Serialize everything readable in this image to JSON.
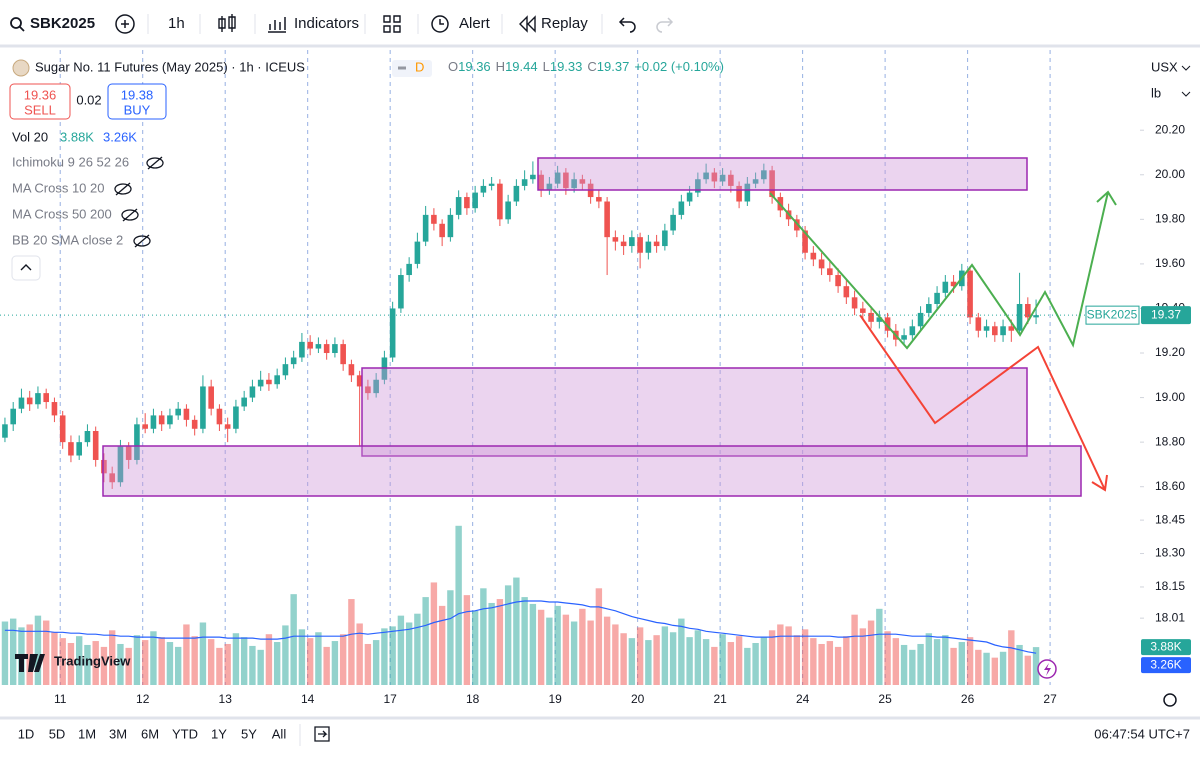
{
  "toolbar": {
    "symbol": "SBK2025",
    "interval": "1h",
    "indicators": "Indicators",
    "alert": "Alert",
    "replay": "Replay"
  },
  "legend": {
    "title": "Sugar No. 11 Futures (May 2025) · 1h · ICEUS",
    "badge": "D",
    "ohlc_keys": [
      "O",
      "H",
      "L",
      "C"
    ],
    "ohlc_values": [
      "19.36",
      "19.44",
      "19.33",
      "19.37"
    ],
    "change": "+0.02 (+0.10%)"
  },
  "trade": {
    "sell_price": "19.36",
    "sell": "SELL",
    "spread": "0.02",
    "buy_price": "19.38",
    "buy": "BUY"
  },
  "indicators": {
    "volume": "Vol 20",
    "volume_values": [
      "3.88K",
      "3.26K"
    ],
    "hidden": [
      "Ichimoku 9 26 52 26",
      "MA Cross 10 20",
      "MA Cross 50 200",
      "BB 20 SMA close 2"
    ]
  },
  "axis_menu": [
    "USX",
    "lb"
  ],
  "logo": "TradingView",
  "ranges": [
    "1D",
    "5D",
    "1M",
    "3M",
    "6M",
    "YTD",
    "1Y",
    "5Y",
    "All"
  ],
  "clock": "06:47:54 UTC+7",
  "chart_data": {
    "type": "candlestick",
    "up_color": "#26a69a",
    "down_color": "#ef5350",
    "grid": true,
    "xlim": [
      -0.6,
      137.6
    ],
    "xticks": [
      {
        "value": 6.7,
        "label": "11"
      },
      {
        "value": 16.7,
        "label": "12"
      },
      {
        "value": 26.7,
        "label": "13"
      },
      {
        "value": 36.7,
        "label": "14"
      },
      {
        "value": 46.7,
        "label": "17"
      },
      {
        "value": 56.7,
        "label": "18"
      },
      {
        "value": 66.7,
        "label": "19"
      },
      {
        "value": 76.7,
        "label": "20"
      },
      {
        "value": 86.7,
        "label": "21"
      },
      {
        "value": 96.7,
        "label": "24"
      },
      {
        "value": 106.7,
        "label": "25"
      },
      {
        "value": 116.7,
        "label": "26"
      },
      {
        "value": 126.7,
        "label": "27"
      }
    ],
    "ylim": [
      17.71,
      20.56
    ],
    "yticks": [
      {
        "value": 20.2,
        "label": "20.20"
      },
      {
        "value": 20,
        "label": "20.00"
      },
      {
        "value": 19.8,
        "label": "19.80"
      },
      {
        "value": 19.6,
        "label": "19.60"
      },
      {
        "value": 19.4,
        "label": "19.40"
      },
      {
        "value": 19.2,
        "label": "19.20"
      },
      {
        "value": 19,
        "label": "19.00"
      },
      {
        "value": 18.8,
        "label": "18.80"
      },
      {
        "value": 18.6,
        "label": "18.60"
      },
      18.45,
      {
        "value": 18.3,
        "label": "18.30"
      },
      18.15,
      18.01
    ],
    "vlim": [
      0,
      17.2
    ],
    "last_price": {
      "name": "SBK2025",
      "value": 19.37
    },
    "open": [
      18.82,
      18.88,
      18.95,
      19.0,
      18.97,
      19.02,
      18.98,
      18.92,
      18.8,
      18.74,
      18.8,
      18.85,
      18.72,
      18.66,
      18.62,
      18.78,
      18.72,
      18.88,
      18.86,
      18.92,
      18.88,
      18.92,
      18.95,
      18.9,
      18.86,
      19.05,
      18.95,
      18.88,
      18.86,
      18.96,
      19.0,
      19.05,
      19.08,
      19.06,
      19.1,
      19.15,
      19.18,
      19.25,
      19.22,
      19.24,
      19.2,
      19.24,
      19.15,
      19.1,
      19.05,
      19.02,
      19.08,
      19.18,
      19.4,
      19.55,
      19.6,
      19.7,
      19.82,
      19.78,
      19.72,
      19.82,
      19.9,
      19.85,
      19.92,
      19.95,
      19.96,
      19.8,
      19.88,
      19.95,
      19.98,
      20.0,
      19.93,
      19.96,
      20.01,
      19.94,
      19.98,
      19.96,
      19.9,
      19.88,
      19.72,
      19.7,
      19.68,
      19.72,
      19.65,
      19.7,
      19.68,
      19.75,
      19.82,
      19.88,
      19.92,
      19.98,
      20.01,
      19.97,
      20.0,
      19.95,
      19.88,
      19.96,
      19.98,
      20.02,
      19.9,
      19.84,
      19.8,
      19.75,
      19.65,
      19.62,
      19.58,
      19.55,
      19.5,
      19.45,
      19.4,
      19.38,
      19.34,
      19.36,
      19.3,
      19.26,
      19.28,
      19.32,
      19.38,
      19.42,
      19.47,
      19.52,
      19.5,
      19.57,
      19.36,
      19.3,
      19.32,
      19.28,
      19.32,
      19.3,
      19.42,
      19.36
    ],
    "high": [
      18.91,
      18.98,
      19.04,
      19.03,
      19.05,
      19.04,
      19.0,
      18.94,
      18.83,
      18.83,
      18.88,
      18.87,
      18.75,
      18.69,
      18.81,
      18.8,
      18.91,
      18.93,
      18.95,
      18.94,
      18.95,
      18.98,
      18.97,
      18.92,
      19.1,
      19.08,
      18.97,
      18.91,
      18.99,
      19.03,
      19.08,
      19.12,
      19.11,
      19.13,
      19.18,
      19.21,
      19.29,
      19.28,
      19.27,
      19.26,
      19.27,
      19.26,
      19.17,
      19.12,
      19.08,
      19.11,
      19.21,
      19.43,
      19.58,
      19.63,
      19.74,
      19.86,
      19.85,
      19.8,
      19.85,
      19.93,
      19.92,
      19.95,
      19.98,
      19.99,
      19.98,
      19.91,
      19.98,
      20.02,
      20.06,
      20.02,
      19.99,
      20.04,
      20.03,
      20.01,
      20.0,
      19.98,
      19.93,
      19.9,
      19.75,
      19.73,
      19.75,
      19.74,
      19.73,
      19.73,
      19.78,
      19.85,
      19.91,
      19.95,
      20.01,
      20.05,
      20.03,
      20.03,
      20.02,
      19.97,
      19.99,
      20.01,
      20.05,
      20.04,
      19.92,
      19.87,
      19.82,
      19.77,
      19.68,
      19.65,
      19.61,
      19.58,
      19.53,
      19.48,
      19.43,
      19.41,
      19.39,
      19.38,
      19.33,
      19.31,
      19.35,
      19.41,
      19.45,
      19.5,
      19.55,
      19.55,
      19.6,
      19.59,
      19.38,
      19.35,
      19.34,
      19.35,
      19.35,
      19.56,
      19.45,
      19.44
    ],
    "low": [
      18.8,
      18.85,
      18.93,
      18.94,
      18.95,
      18.95,
      18.89,
      18.77,
      18.71,
      18.72,
      18.78,
      18.69,
      18.62,
      18.59,
      18.6,
      18.68,
      18.7,
      18.84,
      18.84,
      18.85,
      18.86,
      18.9,
      18.87,
      18.83,
      18.84,
      18.92,
      18.85,
      18.8,
      18.84,
      18.94,
      18.98,
      19.03,
      19.03,
      19.04,
      19.08,
      19.13,
      19.16,
      19.19,
      19.2,
      19.17,
      19.18,
      19.12,
      19.07,
      18.78,
      18.99,
      19.0,
      19.06,
      19.16,
      19.38,
      19.52,
      19.58,
      19.68,
      19.75,
      19.68,
      19.7,
      19.8,
      19.82,
      19.83,
      19.9,
      19.93,
      19.77,
      19.78,
      19.86,
      19.93,
      19.96,
      19.9,
      19.91,
      19.94,
      19.91,
      19.92,
      19.93,
      19.87,
      19.85,
      19.55,
      19.66,
      19.64,
      19.65,
      19.58,
      19.62,
      19.65,
      19.66,
      19.73,
      19.8,
      19.86,
      19.9,
      19.96,
      19.94,
      19.95,
      19.92,
      19.85,
      19.86,
      19.94,
      19.96,
      19.87,
      19.81,
      19.77,
      19.72,
      19.62,
      19.59,
      19.55,
      19.52,
      19.47,
      19.42,
      19.37,
      19.35,
      19.31,
      19.31,
      19.27,
      19.23,
      19.24,
      19.26,
      19.3,
      19.36,
      19.4,
      19.45,
      19.47,
      19.48,
      19.33,
      19.27,
      19.27,
      19.25,
      19.25,
      19.25,
      19.28,
      19.33,
      19.33
    ],
    "close": [
      18.88,
      18.95,
      19.0,
      18.97,
      19.02,
      18.98,
      18.92,
      18.8,
      18.74,
      18.8,
      18.85,
      18.72,
      18.66,
      18.62,
      18.78,
      18.72,
      18.88,
      18.86,
      18.92,
      18.88,
      18.92,
      18.95,
      18.9,
      18.86,
      19.05,
      18.95,
      18.88,
      18.86,
      18.96,
      19.0,
      19.05,
      19.08,
      19.06,
      19.1,
      19.15,
      19.18,
      19.25,
      19.22,
      19.24,
      19.2,
      19.24,
      19.15,
      19.1,
      19.05,
      19.02,
      19.08,
      19.18,
      19.4,
      19.55,
      19.6,
      19.7,
      19.82,
      19.78,
      19.72,
      19.82,
      19.9,
      19.85,
      19.92,
      19.95,
      19.96,
      19.8,
      19.88,
      19.95,
      19.98,
      20.0,
      19.93,
      19.96,
      20.01,
      19.94,
      19.98,
      19.96,
      19.9,
      19.88,
      19.72,
      19.7,
      19.68,
      19.72,
      19.65,
      19.7,
      19.68,
      19.75,
      19.82,
      19.88,
      19.92,
      19.98,
      20.01,
      19.97,
      20.0,
      19.95,
      19.88,
      19.96,
      19.98,
      20.02,
      19.9,
      19.84,
      19.8,
      19.75,
      19.65,
      19.62,
      19.58,
      19.55,
      19.5,
      19.45,
      19.4,
      19.38,
      19.34,
      19.36,
      19.3,
      19.26,
      19.28,
      19.32,
      19.38,
      19.42,
      19.47,
      19.52,
      19.5,
      19.57,
      19.36,
      19.3,
      19.32,
      19.28,
      19.32,
      19.3,
      19.42,
      19.36,
      19.37
    ],
    "volume": [
      6.5,
      6.8,
      5.9,
      6.2,
      7.1,
      6.6,
      5.4,
      4.8,
      4.3,
      5.0,
      4.1,
      4.5,
      3.9,
      5.6,
      4.2,
      3.8,
      5.1,
      4.6,
      5.5,
      4.9,
      4.4,
      3.9,
      6.2,
      5.0,
      6.4,
      4.7,
      3.8,
      4.2,
      5.3,
      4.9,
      4.0,
      3.6,
      5.2,
      4.4,
      6.1,
      9.3,
      5.7,
      4.8,
      5.4,
      3.9,
      4.5,
      5.2,
      8.8,
      6.3,
      4.2,
      4.6,
      5.8,
      6.0,
      7.1,
      6.4,
      7.3,
      9.0,
      10.5,
      8.1,
      9.7,
      16.3,
      9.2,
      7.6,
      9.9,
      8.4,
      8.8,
      10.2,
      11.0,
      9.0,
      8.3,
      7.7,
      6.9,
      8.1,
      7.2,
      6.5,
      7.8,
      6.6,
      9.9,
      7.0,
      6.2,
      5.3,
      4.8,
      5.9,
      4.6,
      5.1,
      6.0,
      5.4,
      6.8,
      4.9,
      5.6,
      4.7,
      3.9,
      5.2,
      4.4,
      5.0,
      3.8,
      4.3,
      4.9,
      5.6,
      6.2,
      6.0,
      5.1,
      5.7,
      4.8,
      4.2,
      4.5,
      3.9,
      5.0,
      7.2,
      5.8,
      6.6,
      7.8,
      5.5,
      4.8,
      4.1,
      3.6,
      4.2,
      5.3,
      4.7,
      5.1,
      3.8,
      4.4,
      4.9,
      3.6,
      3.3,
      2.8,
      3.4,
      5.6,
      4.1,
      3.0,
      3.88
    ],
    "volume_ma": [
      5.6,
      5.6,
      5.5,
      5.5,
      5.5,
      5.5,
      5.4,
      5.4,
      5.3,
      5.3,
      5.2,
      5.2,
      5.1,
      5.1,
      5.0,
      5.0,
      4.9,
      4.9,
      4.9,
      4.8,
      4.8,
      4.8,
      4.8,
      4.8,
      4.9,
      4.9,
      4.9,
      4.8,
      4.8,
      4.8,
      4.8,
      4.7,
      4.7,
      4.7,
      4.8,
      5.0,
      5.0,
      5.0,
      5.0,
      5.0,
      5.0,
      5.0,
      5.2,
      5.3,
      5.2,
      5.3,
      5.4,
      5.5,
      5.6,
      5.7,
      5.9,
      6.1,
      6.4,
      6.6,
      6.8,
      7.3,
      7.5,
      7.6,
      7.8,
      7.9,
      8.1,
      8.3,
      8.5,
      8.6,
      8.6,
      8.6,
      8.5,
      8.5,
      8.4,
      8.3,
      8.2,
      8.0,
      8.0,
      7.8,
      7.6,
      7.3,
      7.0,
      6.8,
      6.6,
      6.4,
      6.3,
      6.1,
      6.0,
      5.8,
      5.7,
      5.5,
      5.4,
      5.3,
      5.2,
      5.1,
      5.0,
      4.9,
      4.9,
      4.9,
      5.0,
      5.0,
      5.0,
      5.0,
      5.0,
      5.0,
      5.0,
      4.9,
      4.9,
      5.0,
      5.0,
      5.1,
      5.2,
      5.2,
      5.2,
      5.1,
      5.0,
      5.0,
      5.0,
      4.9,
      4.9,
      4.8,
      4.7,
      4.6,
      4.5,
      4.4,
      4.1,
      3.9,
      3.8,
      3.6,
      3.4,
      3.26
    ]
  }
}
